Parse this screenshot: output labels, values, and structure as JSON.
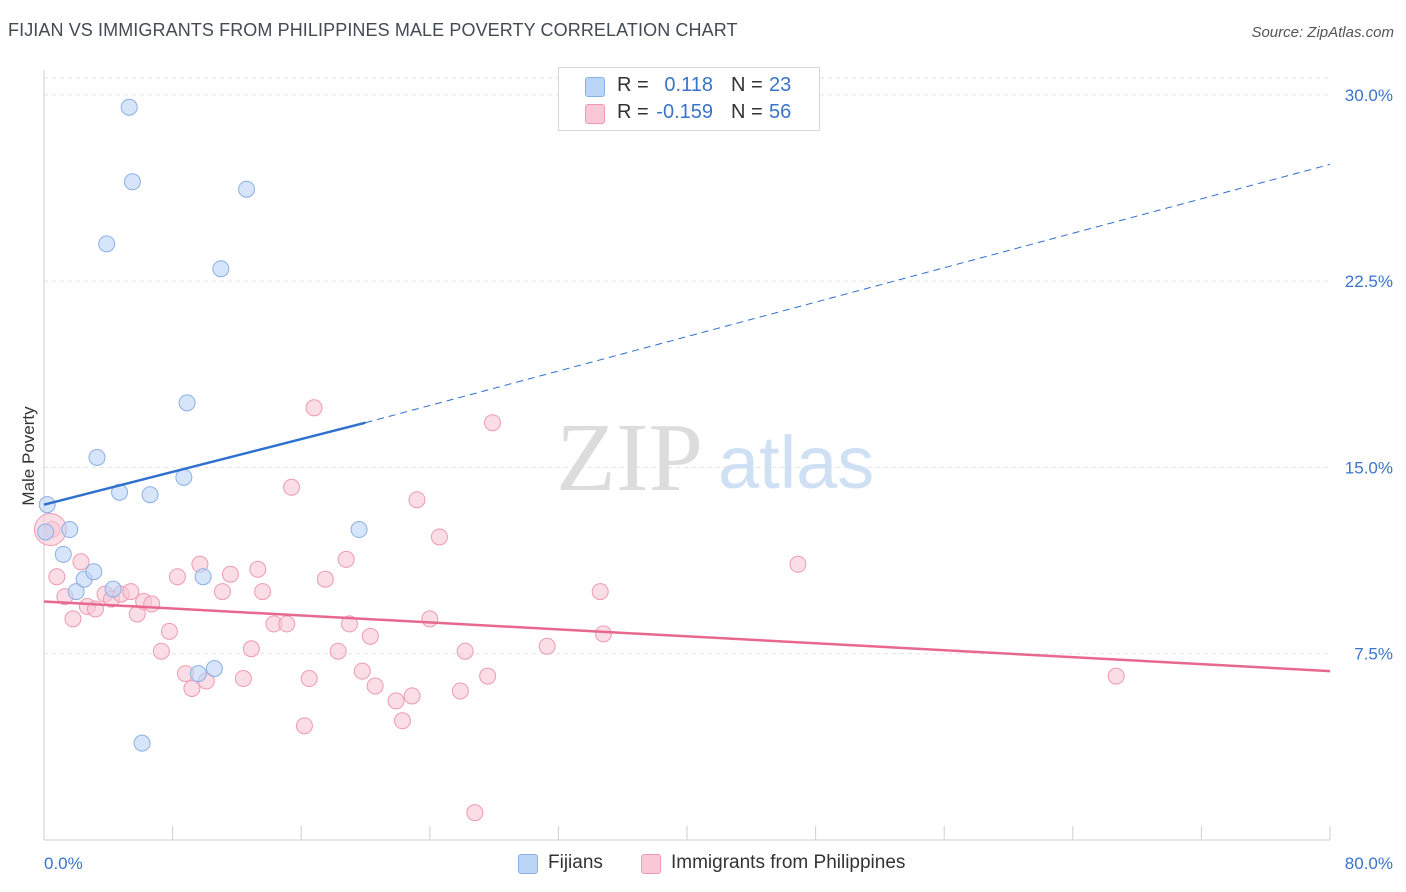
{
  "header": {
    "title": "FIJIAN VS IMMIGRANTS FROM PHILIPPINES MALE POVERTY CORRELATION CHART",
    "source": "Source: ZipAtlas.com"
  },
  "watermark": {
    "zip": "ZIP",
    "atlas": "atlas"
  },
  "legend_top": {
    "rows": [
      {
        "r_label": "R =",
        "r_value": "0.118",
        "n_label": "N =",
        "n_value": "23"
      },
      {
        "r_label": "R =",
        "r_value": "-0.159",
        "n_label": "N =",
        "n_value": "56"
      }
    ]
  },
  "legend_bottom": {
    "fijians": "Fijians",
    "philippines": "Immigrants from Philippines"
  },
  "colors": {
    "fijians_fill": "#bcd4f6",
    "fijians_stroke": "#8ab0e6",
    "fijians_line": "#2f6fce",
    "phil_fill": "#f9c7d6",
    "phil_stroke": "#ee9ab3",
    "phil_line": "#e8678e",
    "tick_label": "#3a74c9",
    "grid": "#e2e2e2"
  },
  "chart_data": {
    "type": "scatter",
    "title": "FIJIAN VS IMMIGRANTS FROM PHILIPPINES MALE POVERTY CORRELATION CHART",
    "xlabel": "",
    "ylabel": "Male Poverty",
    "xlim": [
      0,
      80
    ],
    "ylim": [
      0,
      31
    ],
    "x_tick_labels": [
      "0.0%",
      "80.0%"
    ],
    "y_ticks": [
      7.5,
      15.0,
      22.5,
      30.0
    ],
    "y_tick_labels": [
      "7.5%",
      "15.0%",
      "22.5%",
      "30.0%"
    ],
    "grid": true,
    "legend_position": "bottom",
    "series": [
      {
        "name": "Fijians",
        "points": [
          [
            0.2,
            13.5
          ],
          [
            1.2,
            11.5
          ],
          [
            1.6,
            12.5
          ],
          [
            2.0,
            10.0
          ],
          [
            2.5,
            10.5
          ],
          [
            3.1,
            10.8
          ],
          [
            3.3,
            15.4
          ],
          [
            3.9,
            24.0
          ],
          [
            4.3,
            10.1
          ],
          [
            4.7,
            14.0
          ],
          [
            5.3,
            29.5
          ],
          [
            5.5,
            26.5
          ],
          [
            6.1,
            3.9
          ],
          [
            6.6,
            13.9
          ],
          [
            8.7,
            14.6
          ],
          [
            8.9,
            17.6
          ],
          [
            9.6,
            6.7
          ],
          [
            9.9,
            10.6
          ],
          [
            10.6,
            6.9
          ],
          [
            11.0,
            23.0
          ],
          [
            12.6,
            26.2
          ],
          [
            19.6,
            12.5
          ],
          [
            0.1,
            12.4
          ]
        ],
        "trend": {
          "x": [
            0,
            20,
            80
          ],
          "y": [
            13.5,
            16.8,
            27.2
          ],
          "solid_until_x": 20
        }
      },
      {
        "name": "Immigrants from Philippines",
        "points": [
          [
            0.5,
            12.5
          ],
          [
            0.8,
            10.6
          ],
          [
            1.3,
            9.8
          ],
          [
            1.8,
            8.9
          ],
          [
            2.3,
            11.2
          ],
          [
            2.7,
            9.4
          ],
          [
            3.2,
            9.3
          ],
          [
            3.8,
            9.9
          ],
          [
            4.2,
            9.7
          ],
          [
            4.8,
            9.9
          ],
          [
            5.4,
            10.0
          ],
          [
            5.8,
            9.1
          ],
          [
            6.2,
            9.6
          ],
          [
            6.7,
            9.5
          ],
          [
            7.3,
            7.6
          ],
          [
            7.8,
            8.4
          ],
          [
            8.3,
            10.6
          ],
          [
            8.8,
            6.7
          ],
          [
            9.2,
            6.1
          ],
          [
            9.7,
            11.1
          ],
          [
            10.1,
            6.4
          ],
          [
            11.1,
            10.0
          ],
          [
            11.6,
            10.7
          ],
          [
            12.4,
            6.5
          ],
          [
            12.9,
            7.7
          ],
          [
            13.3,
            10.9
          ],
          [
            13.6,
            10.0
          ],
          [
            14.3,
            8.7
          ],
          [
            15.1,
            8.7
          ],
          [
            15.4,
            14.2
          ],
          [
            16.2,
            4.6
          ],
          [
            16.5,
            6.5
          ],
          [
            16.8,
            17.4
          ],
          [
            17.5,
            10.5
          ],
          [
            18.3,
            7.6
          ],
          [
            18.8,
            11.3
          ],
          [
            19.0,
            8.7
          ],
          [
            19.8,
            6.8
          ],
          [
            20.3,
            8.2
          ],
          [
            20.6,
            6.2
          ],
          [
            21.9,
            5.6
          ],
          [
            22.3,
            4.8
          ],
          [
            22.9,
            5.8
          ],
          [
            23.2,
            13.7
          ],
          [
            24.0,
            8.9
          ],
          [
            24.6,
            12.2
          ],
          [
            25.9,
            6.0
          ],
          [
            26.2,
            7.6
          ],
          [
            26.8,
            1.1
          ],
          [
            27.6,
            6.6
          ],
          [
            27.9,
            16.8
          ],
          [
            31.3,
            7.8
          ],
          [
            34.6,
            10.0
          ],
          [
            34.8,
            8.3
          ],
          [
            46.9,
            11.1
          ],
          [
            66.7,
            6.6
          ]
        ],
        "trend": {
          "x": [
            0,
            80
          ],
          "y": [
            9.6,
            6.8
          ],
          "solid_until_x": 80
        }
      }
    ]
  }
}
